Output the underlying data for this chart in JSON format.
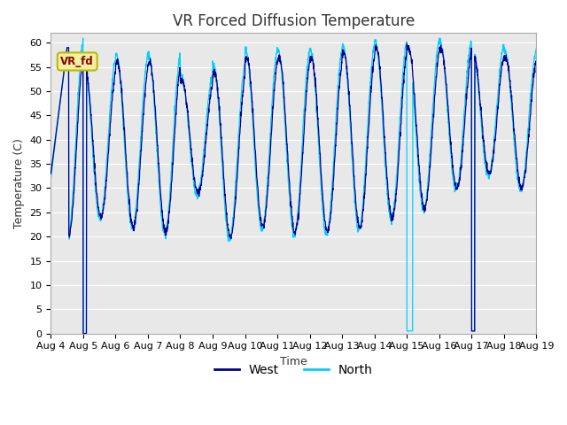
{
  "title": "VR Forced Diffusion Temperature",
  "xlabel": "Time",
  "ylabel": "Temperature (C)",
  "ylim": [
    0,
    62
  ],
  "yticks": [
    0,
    5,
    10,
    15,
    20,
    25,
    30,
    35,
    40,
    45,
    50,
    55,
    60
  ],
  "x_tick_labels": [
    "Aug 4",
    "Aug 5",
    "Aug 6",
    "Aug 7",
    "Aug 8",
    "Aug 9",
    "Aug 10",
    "Aug 11",
    "Aug 12",
    "Aug 13",
    "Aug 14",
    "Aug 15",
    "Aug 16",
    "Aug 17",
    "Aug 18",
    "Aug 19"
  ],
  "west_color": "#00008B",
  "north_color": "#00CFFF",
  "bg_color": "#E8E8E8",
  "grid_color": "white",
  "annotation_text": "VR_fd",
  "title_fontsize": 12,
  "label_fontsize": 9,
  "tick_fontsize": 8
}
